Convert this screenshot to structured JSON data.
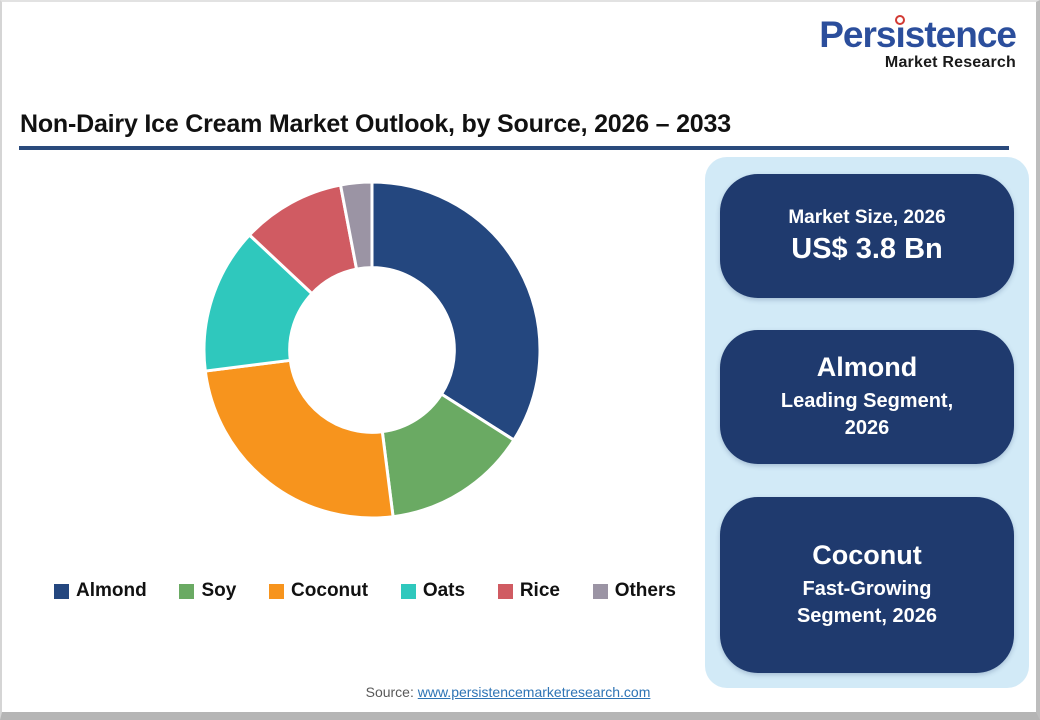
{
  "logo": {
    "brand": "Persistence",
    "brand_pre": "Pers",
    "brand_i": "ı",
    "brand_post": "stence",
    "subtitle": "Market Research",
    "brand_color": "#2b4e9c",
    "dot_color": "#d23a34"
  },
  "header": {
    "title": "Non-Dairy Ice Cream Market Outlook, by Source, 2026 – 2033",
    "underline_color": "#2a4a7c"
  },
  "chart_data": {
    "type": "pie",
    "subtype": "donut",
    "title": "Non-Dairy Ice Cream Market Outlook, by Source, 2026 – 2033",
    "categories": [
      "Almond",
      "Soy",
      "Coconut",
      "Oats",
      "Rice",
      "Others"
    ],
    "values": [
      34,
      14,
      25,
      14,
      10,
      3
    ],
    "unit": "percent-share-estimated",
    "colors": [
      "#24477f",
      "#6aaa63",
      "#f7941d",
      "#2fc8bd",
      "#d05b62",
      "#9b94a4"
    ],
    "start_angle_deg": 0,
    "direction": "clockwise",
    "inner_radius_ratio": 0.49,
    "segment_gap_stroke": "#ffffff",
    "legend_position": "bottom",
    "data_labels": "none"
  },
  "panel": {
    "bg_color": "#d2eaf7",
    "card_bg_color": "#1f3a6e",
    "cards": [
      {
        "title": "Market Size, 2026",
        "value": "US$ 3.8 Bn"
      },
      {
        "title": "Almond",
        "subtitle": "Leading Segment, 2026"
      },
      {
        "title": "Coconut",
        "subtitle": "Fast-Growing Segment, 2026"
      }
    ]
  },
  "footer": {
    "label": "Source:",
    "link": "www.persistencemarketresearch.com",
    "link_color": "#2e74b5"
  }
}
